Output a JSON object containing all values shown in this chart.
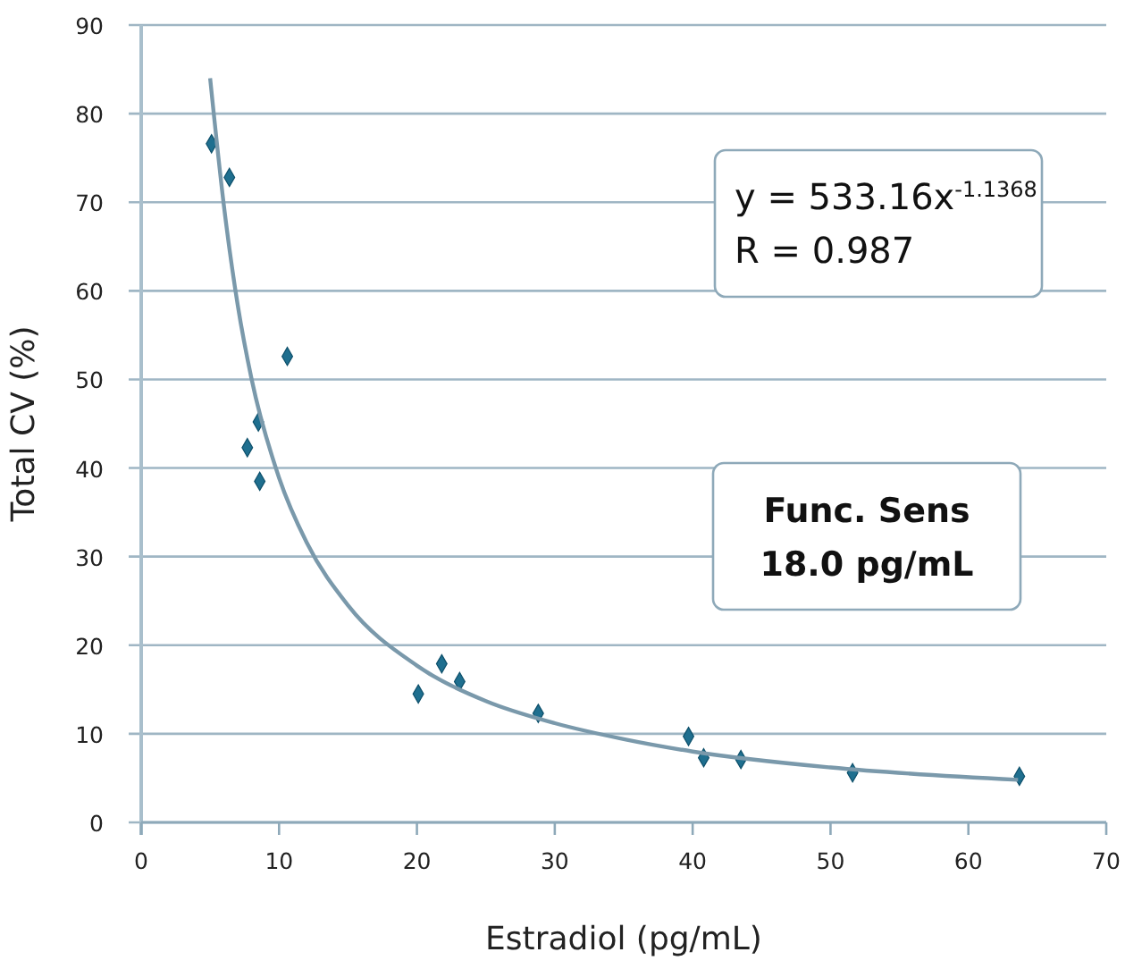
{
  "chart_data": {
    "type": "scatter",
    "xlabel": "Estradiol (pg/mL)",
    "ylabel": "Total CV (%)",
    "xlim": [
      0,
      70
    ],
    "ylim": [
      0,
      90
    ],
    "xticks": [
      0,
      10,
      20,
      30,
      40,
      50,
      60,
      70
    ],
    "yticks": [
      0,
      10,
      20,
      30,
      40,
      50,
      60,
      70,
      80,
      90
    ],
    "grid": "y",
    "series": [
      {
        "color": "#1f6f8f",
        "marker": "diamond",
        "x": [
          5.1,
          6.4,
          7.7,
          8.5,
          8.6,
          10.6,
          20.1,
          21.8,
          23.1,
          28.8,
          39.7,
          40.8,
          43.5,
          51.6,
          63.7
        ],
        "values": [
          76.6,
          72.8,
          42.3,
          45.2,
          38.5,
          52.6,
          14.5,
          17.9,
          15.9,
          12.3,
          9.7,
          7.3,
          7.1,
          5.6,
          5.2
        ]
      },
      {
        "type": "line",
        "color": "#7a99ab",
        "line_style": "solid",
        "marker": "none",
        "x": [
          5,
          6,
          7,
          8,
          10,
          12,
          15,
          20,
          25,
          30,
          35,
          40,
          50,
          63.6
        ],
        "values": [
          84,
          69.6,
          58.4,
          50.1,
          38.9,
          31.6,
          24.5,
          17.7,
          13.7,
          11.2,
          9.4,
          8.0,
          6.2,
          4.8
        ]
      }
    ],
    "annotations": [
      "y = 533.16x$^{-1.1368}$\nR = 0.987",
      "Func. Sens\n18.0 pg/mL"
    ]
  }
}
